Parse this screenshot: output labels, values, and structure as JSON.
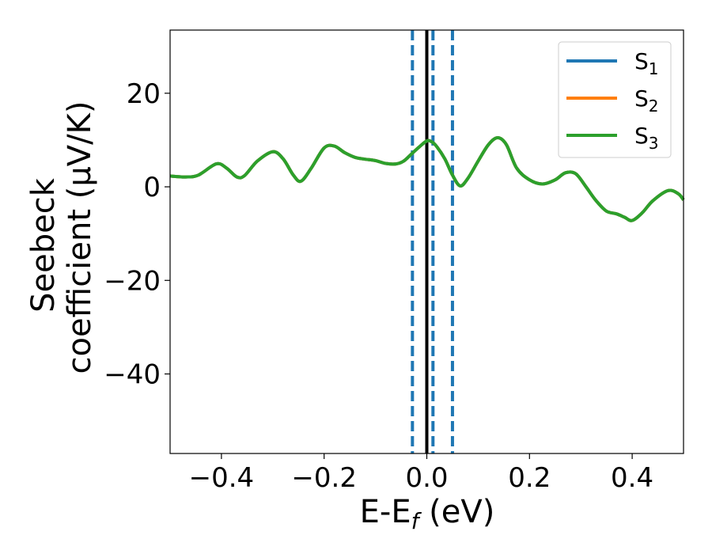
{
  "chart_data": {
    "type": "line",
    "xlabel": "E-E",
    "xlabel_sub": "f",
    "xlabel_suffix": " (eV)",
    "ylabel_line1": "Seebeck",
    "ylabel_line2": "coefficient  (μV/K)",
    "xlim": [
      -0.5,
      0.5
    ],
    "ylim": [
      -57,
      33.5
    ],
    "xticks": [
      -0.4,
      -0.2,
      0.0,
      0.2,
      0.4
    ],
    "xtick_labels": [
      "−0.4",
      "−0.2",
      "0.0",
      "0.2",
      "0.4"
    ],
    "yticks": [
      -40,
      -20,
      0,
      20
    ],
    "ytick_labels": [
      "−40",
      "−20",
      "0",
      "20"
    ],
    "grid": false,
    "legend_position": "top-right",
    "series": [
      {
        "name": "S",
        "sub": "1",
        "color": "#1f77b4"
      },
      {
        "name": "S",
        "sub": "2",
        "color": "#ff7f0e"
      },
      {
        "name": "S",
        "sub": "3",
        "color": "#2ca02c"
      }
    ],
    "x": [
      -0.5,
      -0.47,
      -0.445,
      -0.41,
      -0.39,
      -0.37,
      -0.355,
      -0.33,
      -0.3,
      -0.28,
      -0.26,
      -0.245,
      -0.225,
      -0.2,
      -0.18,
      -0.16,
      -0.14,
      -0.12,
      -0.1,
      -0.08,
      -0.06,
      -0.045,
      -0.03,
      -0.015,
      0.0,
      0.01,
      0.02,
      0.035,
      0.05,
      0.065,
      0.08,
      0.1,
      0.12,
      0.138,
      0.155,
      0.175,
      0.2,
      0.225,
      0.25,
      0.27,
      0.29,
      0.31,
      0.33,
      0.35,
      0.37,
      0.385,
      0.4,
      0.42,
      0.44,
      0.47,
      0.49,
      0.5
    ],
    "y": [
      2.3,
      2.1,
      2.5,
      4.9,
      4.0,
      2.1,
      2.4,
      5.5,
      7.5,
      6.0,
      2.5,
      1.2,
      4.0,
      8.3,
      8.7,
      7.3,
      6.3,
      5.9,
      5.6,
      5.0,
      4.9,
      5.5,
      7.0,
      8.5,
      9.8,
      9.6,
      8.5,
      6.0,
      2.5,
      0.2,
      1.8,
      5.5,
      9.0,
      10.5,
      9.0,
      4.0,
      1.5,
      0.6,
      1.5,
      3.0,
      2.8,
      0.0,
      -3.0,
      -5.2,
      -5.8,
      -6.5,
      -7.2,
      -5.5,
      -3.0,
      -0.8,
      -1.5,
      -2.8
    ],
    "vlines": [
      {
        "x": 0.0,
        "style": "solid",
        "color": "#000000"
      },
      {
        "x": -0.028,
        "style": "dashed",
        "color": "#1f77b4"
      },
      {
        "x": 0.012,
        "style": "dashed",
        "color": "#1f77b4"
      },
      {
        "x": 0.05,
        "style": "dashed",
        "color": "#1f77b4"
      }
    ]
  }
}
